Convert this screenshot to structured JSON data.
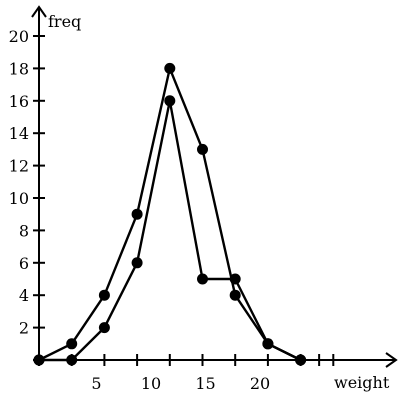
{
  "chart_data": {
    "type": "line",
    "title": "",
    "xlabel": "weight",
    "ylabel": "freq",
    "xlim": [
      0,
      25
    ],
    "ylim": [
      0,
      20
    ],
    "x_ticks": [
      5,
      10,
      15,
      20
    ],
    "x_tick_marks": [
      0,
      3,
      6,
      9,
      12,
      15,
      18,
      21,
      24
    ],
    "y_ticks": [
      2,
      4,
      6,
      8,
      10,
      12,
      14,
      16,
      18,
      20
    ],
    "grid": false,
    "legend": "none",
    "series": [
      {
        "x": [
          0,
          3,
          6,
          9,
          12,
          15,
          18,
          21,
          24
        ],
        "values": [
          0,
          1,
          4,
          9,
          18,
          13,
          4,
          1,
          0
        ]
      },
      {
        "x": [
          0,
          3,
          6,
          9,
          12,
          15,
          18,
          21,
          24
        ],
        "values": [
          0,
          0,
          2,
          6,
          16,
          5,
          5,
          1,
          0
        ]
      }
    ],
    "colors": {
      "line": "#000000",
      "point": "#000000",
      "axis": "#000000"
    }
  }
}
